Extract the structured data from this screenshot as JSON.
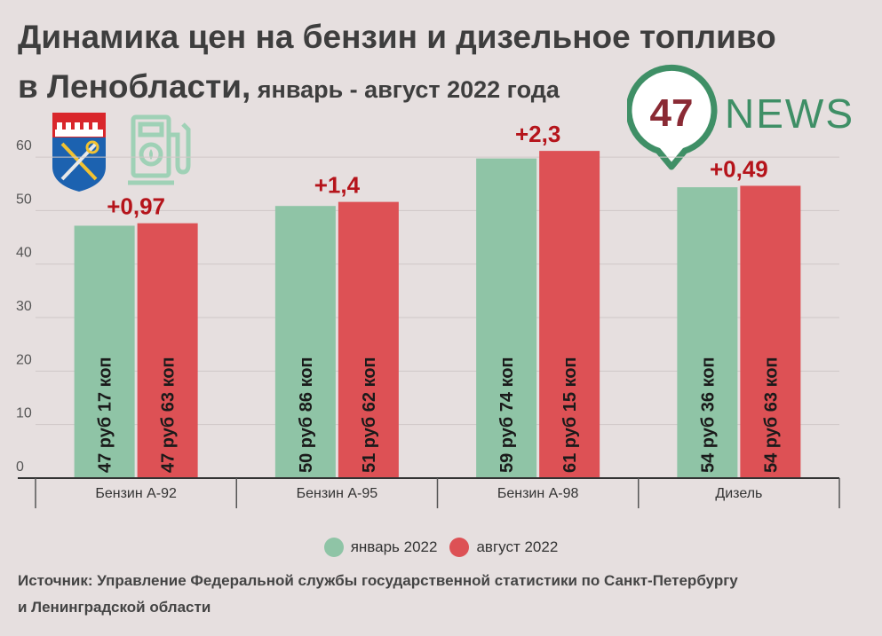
{
  "header": {
    "title_line1": "Динамика цен на бензин и дизельное топливо",
    "title_line2_main": "в Ленобласти,",
    "title_line2_sub": " январь - август 2022 года"
  },
  "logo": {
    "number": "47",
    "word": "NEWS"
  },
  "colors": {
    "january": "#8fc4a6",
    "august": "#dd5155",
    "delta": "#b5141b",
    "logo_green": "#3f8f66",
    "logo_red": "#8a2a34"
  },
  "chart_data": {
    "type": "bar",
    "categories": [
      "Бензин А-92",
      "Бензин А-95",
      "Бензин А-98",
      "Дизель"
    ],
    "series": [
      {
        "name": "январь 2022",
        "values": [
          47.17,
          50.86,
          59.74,
          54.36
        ],
        "labels": [
          "47 руб 17 коп",
          "50 руб 86 коп",
          "59 руб 74 коп",
          "54 руб 36 коп"
        ]
      },
      {
        "name": "август 2022",
        "values": [
          47.63,
          51.62,
          61.15,
          54.63
        ],
        "labels": [
          "47 руб 63 коп",
          "51 руб 62 коп",
          "61 руб 15 коп",
          "54 руб 63 коп"
        ]
      }
    ],
    "annotations": [
      "+0,97",
      "+1,4",
      "+2,3",
      "+0,49"
    ],
    "yticks": [
      0,
      10,
      20,
      30,
      40,
      50,
      60
    ],
    "ylim": [
      0,
      62
    ],
    "grid": true,
    "legend_position": "bottom"
  },
  "legend": {
    "january": "январь 2022",
    "august": "август 2022"
  },
  "source": {
    "line1": "Источник: Управление Федеральной службы государственной статистики по Санкт-Петербургу",
    "line2": "и Ленинградской области"
  }
}
